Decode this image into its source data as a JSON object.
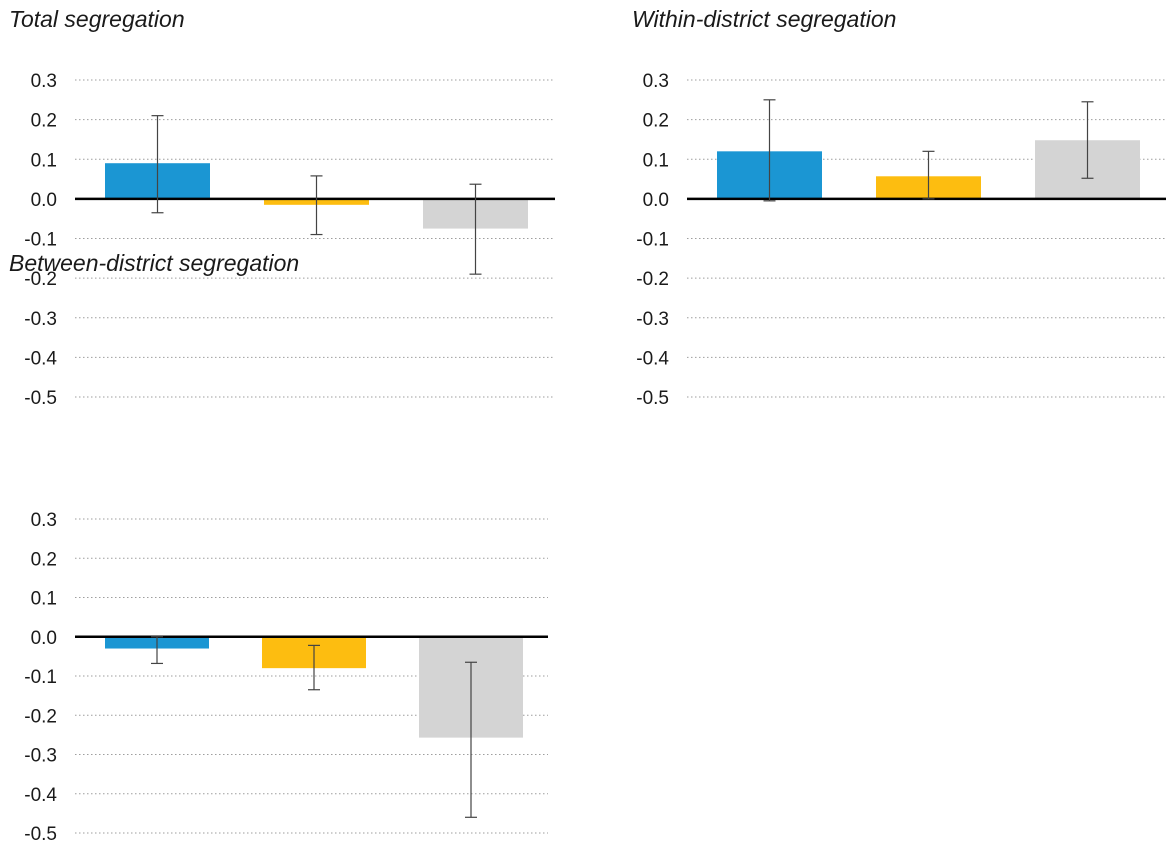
{
  "colors": {
    "series_1": "#1b96d3",
    "series_2": "#fdbd10",
    "series_3": "#d4d4d4",
    "axis": "#000000",
    "grid": "#9e9e9e",
    "error_bar": "#444444"
  },
  "chart_data": [
    {
      "type": "bar",
      "title": "Total segregation",
      "ylim": [
        -0.5,
        0.3
      ],
      "yticks": [
        "0.3",
        "0.2",
        "0.1",
        "0.0",
        "-0.1",
        "-0.2",
        "-0.3",
        "-0.4",
        "-0.5"
      ],
      "grid": true,
      "values": [
        0.09,
        -0.015,
        -0.075
      ],
      "error_low": [
        -0.035,
        -0.09,
        -0.19
      ],
      "error_high": [
        0.21,
        0.058,
        0.037
      ]
    },
    {
      "type": "bar",
      "title": "Within-district segregation",
      "ylim": [
        -0.5,
        0.3
      ],
      "yticks": [
        "0.3",
        "0.2",
        "0.1",
        "0.0",
        "-0.1",
        "-0.2",
        "-0.3",
        "-0.4",
        "-0.5"
      ],
      "grid": true,
      "values": [
        0.12,
        0.057,
        0.148
      ],
      "error_low": [
        -0.005,
        0.0,
        0.052
      ],
      "error_high": [
        0.25,
        0.12,
        0.245
      ]
    },
    {
      "type": "bar",
      "title": "Between-district segregation",
      "ylim": [
        -0.5,
        0.3
      ],
      "yticks": [
        "0.3",
        "0.2",
        "0.1",
        "0.0",
        "-0.1",
        "-0.2",
        "-0.3",
        "-0.4",
        "-0.5"
      ],
      "grid": true,
      "values": [
        -0.03,
        -0.08,
        -0.257
      ],
      "error_low": [
        -0.068,
        -0.135,
        -0.46
      ],
      "error_high": [
        0.0,
        -0.022,
        -0.065
      ]
    }
  ]
}
